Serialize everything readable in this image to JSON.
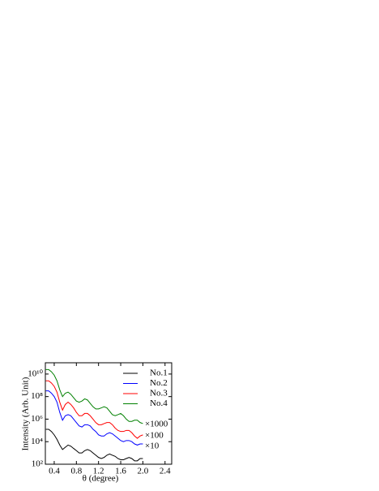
{
  "chart_data": {
    "type": "line",
    "x_label": "θ (degree)",
    "y_label": "Intensity (Arb. Unit)",
    "log_y": true,
    "legend": "upper right",
    "xlim": [
      0.24,
      2.52
    ],
    "ylim": [
      100,
      100000000000.0
    ],
    "xticks": [
      0.4,
      0.8,
      1.2,
      1.6,
      {
        "value": 2,
        "label": "2.0"
      },
      2.4
    ],
    "yticks": [
      {
        "value": 100,
        "label": "10²"
      },
      {
        "value": 10000,
        "label": "10⁴"
      },
      {
        "value": 1000000,
        "label": "10⁶"
      },
      {
        "value": 100000000,
        "label": "10⁸"
      },
      {
        "value": 10000000000,
        "label": "10¹⁰"
      }
    ],
    "x": [
      0.25,
      0.3,
      0.35,
      0.4,
      0.45,
      0.5,
      0.55,
      0.6,
      0.65,
      0.7,
      0.75,
      0.8,
      0.85,
      0.9,
      0.95,
      1.0,
      1.05,
      1.1,
      1.15,
      1.2,
      1.25,
      1.3,
      1.35,
      1.4,
      1.45,
      1.5,
      1.55,
      1.6,
      1.65,
      1.7,
      1.75,
      1.8,
      1.85,
      1.9,
      1.95,
      2.0
    ],
    "series": [
      {
        "name": "No.1",
        "color": "#000000",
        "values": [
          126000.0,
          126000.0,
          80000.0,
          40000.0,
          16000.0,
          5000.0,
          2000.0,
          3200.0,
          5000.0,
          4000.0,
          2500.0,
          1600.0,
          1000.0,
          1000.0,
          1600.0,
          2000.0,
          1600.0,
          1000.0,
          630,
          400,
          320,
          400,
          630,
          800,
          630,
          500,
          320,
          250,
          250,
          320,
          400,
          320,
          200,
          200,
          320,
          320
        ]
      },
      {
        "name": "No.2",
        "color": "#0000ff",
        "values": [
          320000000.0,
          320000000.0,
          200000000.0,
          100000000.0,
          32000000.0,
          4000000.0,
          800000.0,
          2000000.0,
          2500000.0,
          2000000.0,
          1000000.0,
          500000.0,
          250000.0,
          200000.0,
          320000.0,
          320000.0,
          250000.0,
          126000.0,
          80000.0,
          40000.0,
          32000.0,
          32000.0,
          50000.0,
          63000.0,
          50000.0,
          32000.0,
          20000.0,
          12600.0,
          10000.0,
          12600.0,
          12600.0,
          10000.0,
          6300.0,
          5000.0,
          6300.0,
          6300.0
        ]
      },
      {
        "name": "No.3",
        "color": "#ff0000",
        "values": [
          2500000000.0,
          2500000000.0,
          1600000000.0,
          800000000.0,
          250000000.0,
          32000000.0,
          6300000.0,
          20000000.0,
          32000000.0,
          20000000.0,
          10000000.0,
          4000000.0,
          2000000.0,
          2000000.0,
          3200000.0,
          3200000.0,
          2000000.0,
          1000000.0,
          500000.0,
          320000.0,
          320000.0,
          400000.0,
          500000.0,
          500000.0,
          320000.0,
          160000.0,
          100000.0,
          80000.0,
          80000.0,
          100000.0,
          100000.0,
          63000.0,
          32000.0,
          20000.0,
          32000.0,
          40000.0
        ]
      },
      {
        "name": "No.4",
        "color": "#008000",
        "values": [
          25000000000.0,
          25000000000.0,
          16000000000.0,
          8000000000.0,
          2500000000.0,
          400000000.0,
          100000000.0,
          200000000.0,
          250000000.0,
          160000000.0,
          80000000.0,
          40000000.0,
          32000000.0,
          40000000.0,
          63000000.0,
          50000000.0,
          25000000.0,
          12600000.0,
          8000000.0,
          8000000.0,
          10000000.0,
          12600000.0,
          10000000.0,
          5000000.0,
          2500000.0,
          2000000.0,
          2500000.0,
          3200000.0,
          2000000.0,
          1000000.0,
          630000.0,
          630000.0,
          800000.0,
          800000.0,
          500000.0,
          400000.0
        ]
      }
    ],
    "annotations": [
      "×1000",
      "×100",
      "×10"
    ]
  }
}
